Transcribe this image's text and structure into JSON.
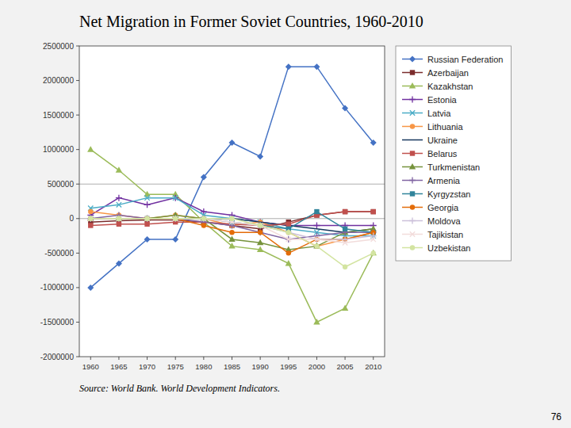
{
  "chart_data": {
    "type": "line",
    "title": "Net Migration in Former Soviet Countries, 1960-2010",
    "annotations": [
      "Source: World Bank. World Development Indicators.",
      "76"
    ],
    "x": [
      1960,
      1965,
      1970,
      1975,
      1980,
      1985,
      1990,
      1995,
      2000,
      2005,
      2010
    ],
    "xlim": [
      1958,
      2012
    ],
    "xticks": [
      1960,
      1965,
      1970,
      1975,
      1980,
      1985,
      1990,
      1995,
      2000,
      2005,
      2010
    ],
    "ylim": [
      -2000000,
      2500000
    ],
    "yticks": [
      -2000000,
      -1500000,
      -1000000,
      -500000,
      0,
      500000,
      1000000,
      1500000,
      2000000,
      2500000
    ],
    "reference_lines": [
      0,
      500000
    ],
    "grid": false,
    "legend": "right",
    "series": [
      {
        "name": "Russian Federation",
        "color": "#4472C4",
        "marker": "diamond",
        "line_style": "solid",
        "values": [
          -1000000,
          -650000,
          -300000,
          -300000,
          600000,
          1100000,
          900000,
          2200000,
          2200000,
          1600000,
          1100000
        ]
      },
      {
        "name": "Azerbaijan",
        "color": "#7B2C2C",
        "marker": "square",
        "line_style": "solid",
        "values": [
          -50000,
          -30000,
          -20000,
          -20000,
          -50000,
          -100000,
          -150000,
          -50000,
          50000,
          100000,
          100000
        ]
      },
      {
        "name": "Kazakhstan",
        "color": "#9BBB59",
        "marker": "triangle",
        "line_style": "solid",
        "values": [
          1000000,
          700000,
          350000,
          350000,
          -50000,
          -400000,
          -450000,
          -650000,
          -1500000,
          -1300000,
          -500000
        ]
      },
      {
        "name": "Estonia",
        "color": "#7030A0",
        "marker": "plus",
        "line_style": "solid",
        "values": [
          50000,
          300000,
          200000,
          300000,
          100000,
          50000,
          -50000,
          -100000,
          -100000,
          -100000,
          -100000
        ]
      },
      {
        "name": "Latvia",
        "color": "#4BACC6",
        "marker": "x",
        "line_style": "solid",
        "values": [
          150000,
          200000,
          300000,
          300000,
          50000,
          0,
          -50000,
          -150000,
          -200000,
          -250000,
          -250000
        ]
      },
      {
        "name": "Lithuania",
        "color": "#F79646",
        "marker": "circle",
        "line_style": "solid",
        "values": [
          100000,
          50000,
          0,
          50000,
          0,
          -100000,
          -50000,
          -200000,
          -400000,
          -300000,
          -200000
        ]
      },
      {
        "name": "Ukraine",
        "color": "#17375E",
        "marker": "none",
        "line_style": "solid",
        "values": [
          0,
          0,
          0,
          0,
          0,
          0,
          -50000,
          -100000,
          -150000,
          -200000,
          -150000
        ]
      },
      {
        "name": "Belarus",
        "color": "#C0504D",
        "marker": "square",
        "line_style": "solid",
        "values": [
          -100000,
          -80000,
          -80000,
          -50000,
          -50000,
          -80000,
          -100000,
          -80000,
          50000,
          100000,
          100000
        ]
      },
      {
        "name": "Turkmenistan",
        "color": "#76933C",
        "marker": "triangle",
        "line_style": "solid",
        "values": [
          0,
          0,
          0,
          50000,
          0,
          -300000,
          -350000,
          -450000,
          -400000,
          -200000,
          -150000
        ]
      },
      {
        "name": "Armenia",
        "color": "#8064A2",
        "marker": "plus",
        "line_style": "solid",
        "values": [
          0,
          50000,
          0,
          0,
          -50000,
          -100000,
          -200000,
          -300000,
          -250000,
          -200000,
          -200000
        ]
      },
      {
        "name": "Kyrgyzstan",
        "color": "#31849B",
        "marker": "square",
        "line_style": "solid",
        "values": [
          0,
          0,
          0,
          0,
          0,
          -50000,
          -100000,
          -150000,
          100000,
          -150000,
          -200000
        ]
      },
      {
        "name": "Georgia",
        "color": "#E36C09",
        "marker": "circle",
        "line_style": "solid",
        "values": [
          0,
          0,
          0,
          0,
          -100000,
          -200000,
          -200000,
          -500000,
          -300000,
          -300000,
          -200000
        ]
      },
      {
        "name": "Moldova",
        "color": "#CCC0DA",
        "marker": "plus",
        "line_style": "solid",
        "values": [
          0,
          0,
          0,
          0,
          0,
          -50000,
          -100000,
          -200000,
          -300000,
          -300000,
          -250000
        ]
      },
      {
        "name": "Tajikistan",
        "color": "#F2DCDB",
        "marker": "x",
        "line_style": "solid",
        "values": [
          0,
          0,
          0,
          0,
          0,
          -50000,
          -100000,
          -300000,
          -300000,
          -350000,
          -300000
        ]
      },
      {
        "name": "Uzbekistan",
        "color": "#D3E4A1",
        "marker": "circle",
        "line_style": "solid",
        "values": [
          0,
          0,
          0,
          0,
          0,
          0,
          -100000,
          -200000,
          -400000,
          -700000,
          -500000
        ]
      }
    ]
  }
}
